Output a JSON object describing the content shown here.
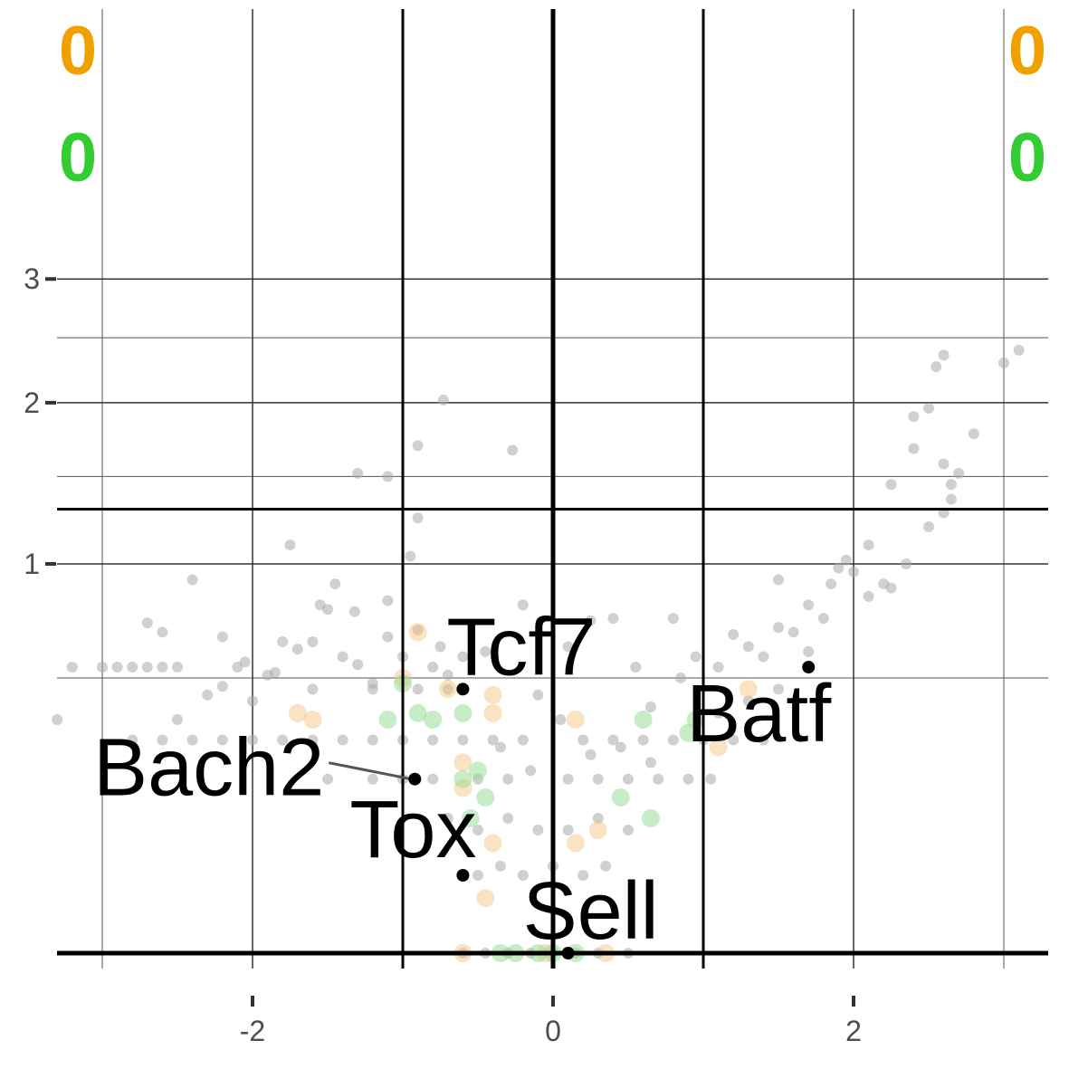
{
  "chart_data": {
    "type": "scatter",
    "title": "",
    "xlabel": "",
    "ylabel": "",
    "x_ticks": [
      {
        "value": -2,
        "label": "-2"
      },
      {
        "value": 0,
        "label": "0"
      },
      {
        "value": 2,
        "label": "2"
      }
    ],
    "y_ticks": [
      {
        "value": 1,
        "label": "1"
      },
      {
        "value": 2,
        "label": "2"
      },
      {
        "value": 3,
        "label": "3"
      }
    ],
    "xlim": [
      -3.3,
      3.3
    ],
    "y_axis_scale": "-log10 p (sqrt-scaled)",
    "ylim": [
      0,
      3.2
    ],
    "thresholds": {
      "vertical": [
        -1,
        0,
        1
      ],
      "horizontal": [
        0,
        1.301
      ]
    },
    "corner_counts": [
      {
        "position": "top-left",
        "value": "0",
        "color": "#f0a000"
      },
      {
        "position": "top-left-lower",
        "value": "0",
        "color": "#33cc33"
      },
      {
        "position": "top-right",
        "value": "0",
        "color": "#f0a000"
      },
      {
        "position": "top-right-lower",
        "value": "0",
        "color": "#33cc33"
      }
    ],
    "colors": {
      "background_points": "#aaaaaa",
      "orange_points": "#f5c27a",
      "green_points": "#8fdc8f",
      "highlight_points": "#000000"
    },
    "highlighted_genes": [
      {
        "name": "Tcf7",
        "x": -0.6,
        "y": 0.46
      },
      {
        "name": "Batf",
        "x": 1.7,
        "y": 0.54
      },
      {
        "name": "Bach2",
        "x": -0.92,
        "y": 0.2
      },
      {
        "name": "Tox",
        "x": -0.6,
        "y": 0.04
      },
      {
        "name": "Sell",
        "x": 0.1,
        "y": 0.0
      }
    ],
    "background_points": [
      [
        -3.3,
        0.36
      ],
      [
        -3.2,
        0.54
      ],
      [
        -3.0,
        0.54
      ],
      [
        -2.9,
        0.54
      ],
      [
        -2.8,
        0.54
      ],
      [
        -2.7,
        0.54
      ],
      [
        -2.6,
        0.54
      ],
      [
        -2.7,
        0.72
      ],
      [
        -2.5,
        0.54
      ],
      [
        -2.4,
        0.92
      ],
      [
        -2.5,
        0.36
      ],
      [
        -2.3,
        0.44
      ],
      [
        -2.2,
        0.47
      ],
      [
        -2.1,
        0.54
      ],
      [
        -2.0,
        0.42
      ],
      [
        -1.9,
        0.51
      ],
      [
        -1.8,
        0.64
      ],
      [
        -1.7,
        0.61
      ],
      [
        -1.6,
        0.64
      ],
      [
        -1.5,
        0.78
      ],
      [
        -1.4,
        0.58
      ],
      [
        -1.3,
        0.55
      ],
      [
        -1.2,
        0.48
      ],
      [
        -1.1,
        0.66
      ],
      [
        -1.0,
        0.58
      ],
      [
        -0.9,
        0.69
      ],
      [
        -0.8,
        0.54
      ],
      [
        -0.7,
        0.51
      ],
      [
        -1.75,
        1.1
      ],
      [
        -1.3,
        1.52
      ],
      [
        -1.1,
        1.5
      ],
      [
        -0.9,
        1.7
      ],
      [
        -0.9,
        1.25
      ],
      [
        -0.73,
        2.02
      ],
      [
        -0.27,
        1.67
      ],
      [
        -1.55,
        0.8
      ],
      [
        -1.32,
        0.77
      ],
      [
        -0.95,
        1.04
      ],
      [
        -0.2,
        0.8
      ],
      [
        0.25,
        0.73
      ],
      [
        0.4,
        0.74
      ],
      [
        0.8,
        0.74
      ],
      [
        -2.8,
        0.3
      ],
      [
        -2.6,
        0.3
      ],
      [
        -2.4,
        0.3
      ],
      [
        -2.2,
        0.3
      ],
      [
        -2.0,
        0.3
      ],
      [
        -1.8,
        0.3
      ],
      [
        -1.6,
        0.3
      ],
      [
        -1.4,
        0.3
      ],
      [
        -1.2,
        0.3
      ],
      [
        -1.0,
        0.3
      ],
      [
        -0.8,
        0.3
      ],
      [
        -0.6,
        0.3
      ],
      [
        -0.4,
        0.3
      ],
      [
        -0.2,
        0.3
      ],
      [
        0.2,
        0.3
      ],
      [
        0.4,
        0.3
      ],
      [
        0.6,
        0.3
      ],
      [
        0.8,
        0.3
      ],
      [
        1.0,
        0.3
      ],
      [
        -1.6,
        0.46
      ],
      [
        -1.2,
        0.46
      ],
      [
        -0.9,
        0.46
      ],
      [
        -0.7,
        0.46
      ],
      [
        -1.5,
        0.2
      ],
      [
        -1.2,
        0.2
      ],
      [
        -1.0,
        0.2
      ],
      [
        -0.8,
        0.2
      ],
      [
        -0.5,
        0.2
      ],
      [
        -0.3,
        0.2
      ],
      [
        0.1,
        0.2
      ],
      [
        0.3,
        0.2
      ],
      [
        0.5,
        0.2
      ],
      [
        0.7,
        0.2
      ],
      [
        0.9,
        0.2
      ],
      [
        1.05,
        0.2
      ],
      [
        -0.7,
        0.12
      ],
      [
        -0.5,
        0.1
      ],
      [
        -0.3,
        0.12
      ],
      [
        -0.1,
        0.1
      ],
      [
        0.1,
        0.1
      ],
      [
        0.3,
        0.12
      ],
      [
        0.5,
        0.1
      ],
      [
        -0.5,
        0.04
      ],
      [
        -0.35,
        0.05
      ],
      [
        -0.2,
        0.04
      ],
      [
        0.0,
        0.05
      ],
      [
        0.2,
        0.04
      ],
      [
        0.35,
        0.05
      ],
      [
        -0.6,
        0.0
      ],
      [
        -0.45,
        0.0
      ],
      [
        -0.3,
        0.0
      ],
      [
        -0.15,
        0.0
      ],
      [
        0.0,
        0.0
      ],
      [
        0.15,
        0.0
      ],
      [
        0.3,
        0.0
      ],
      [
        0.5,
        0.0
      ],
      [
        1.1,
        0.54
      ],
      [
        1.2,
        0.67
      ],
      [
        1.3,
        0.62
      ],
      [
        1.4,
        0.58
      ],
      [
        1.5,
        0.7
      ],
      [
        1.6,
        0.68
      ],
      [
        1.7,
        0.6
      ],
      [
        1.8,
        0.74
      ],
      [
        1.85,
        0.9
      ],
      [
        1.9,
        0.98
      ],
      [
        1.95,
        1.02
      ],
      [
        2.0,
        0.96
      ],
      [
        2.1,
        0.84
      ],
      [
        2.2,
        0.9
      ],
      [
        2.25,
        0.88
      ],
      [
        2.35,
        1.0
      ],
      [
        2.5,
        1.2
      ],
      [
        2.6,
        1.28
      ],
      [
        2.65,
        1.36
      ],
      [
        2.7,
        1.52
      ],
      [
        2.8,
        1.78
      ],
      [
        2.5,
        1.96
      ],
      [
        2.6,
        1.58
      ],
      [
        2.4,
        1.9
      ],
      [
        2.55,
        2.27
      ],
      [
        2.6,
        2.36
      ],
      [
        3.0,
        2.3
      ],
      [
        3.1,
        2.4
      ],
      [
        2.1,
        1.1
      ],
      [
        2.25,
        1.45
      ],
      [
        2.4,
        1.68
      ],
      [
        2.65,
        1.45
      ],
      [
        1.5,
        0.92
      ],
      [
        1.7,
        0.8
      ],
      [
        1.1,
        0.38
      ],
      [
        1.3,
        0.42
      ],
      [
        1.5,
        0.46
      ],
      [
        1.2,
        0.3
      ],
      [
        1.4,
        0.3
      ],
      [
        0.85,
        0.5
      ],
      [
        0.65,
        0.4
      ],
      [
        -0.1,
        0.44
      ],
      [
        -1.45,
        0.9
      ],
      [
        -1.1,
        0.82
      ],
      [
        -2.2,
        0.66
      ],
      [
        -2.6,
        0.68
      ],
      [
        -2.05,
        0.56
      ],
      [
        -1.85,
        0.52
      ],
      [
        -0.45,
        0.6
      ],
      [
        -0.6,
        0.58
      ],
      [
        -0.75,
        0.62
      ],
      [
        0.1,
        0.62
      ],
      [
        0.55,
        0.54
      ],
      [
        0.95,
        0.58
      ],
      [
        -0.35,
        0.28
      ],
      [
        -0.15,
        0.22
      ],
      [
        0.05,
        0.36
      ],
      [
        0.25,
        0.26
      ],
      [
        0.45,
        0.28
      ],
      [
        0.65,
        0.24
      ]
    ],
    "orange_points": [
      [
        -0.9,
        0.68
      ],
      [
        -1.0,
        0.5
      ],
      [
        -0.7,
        0.46
      ],
      [
        -0.4,
        0.44
      ],
      [
        -0.4,
        0.38
      ],
      [
        -1.7,
        0.38
      ],
      [
        -1.6,
        0.36
      ],
      [
        -0.6,
        0.24
      ],
      [
        -0.6,
        0.18
      ],
      [
        -0.4,
        0.08
      ],
      [
        0.3,
        0.1
      ],
      [
        0.15,
        0.08
      ],
      [
        -0.45,
        0.02
      ],
      [
        1.3,
        0.46
      ],
      [
        1.1,
        0.28
      ],
      [
        0.15,
        0.36
      ],
      [
        -0.6,
        0.0
      ],
      [
        0.35,
        0.0
      ],
      [
        -0.05,
        0.0
      ]
    ],
    "green_points": [
      [
        -1.0,
        0.48
      ],
      [
        -0.9,
        0.38
      ],
      [
        -0.8,
        0.36
      ],
      [
        -1.1,
        0.36
      ],
      [
        -0.6,
        0.38
      ],
      [
        -0.6,
        0.2
      ],
      [
        -0.5,
        0.22
      ],
      [
        -0.55,
        0.12
      ],
      [
        -0.45,
        0.16
      ],
      [
        0.45,
        0.16
      ],
      [
        0.65,
        0.12
      ],
      [
        0.6,
        0.36
      ],
      [
        0.95,
        0.36
      ],
      [
        0.9,
        0.32
      ],
      [
        -0.25,
        0.0
      ],
      [
        -0.1,
        0.0
      ],
      [
        0.0,
        0.0
      ],
      [
        0.15,
        0.0
      ],
      [
        -0.35,
        0.0
      ]
    ]
  }
}
